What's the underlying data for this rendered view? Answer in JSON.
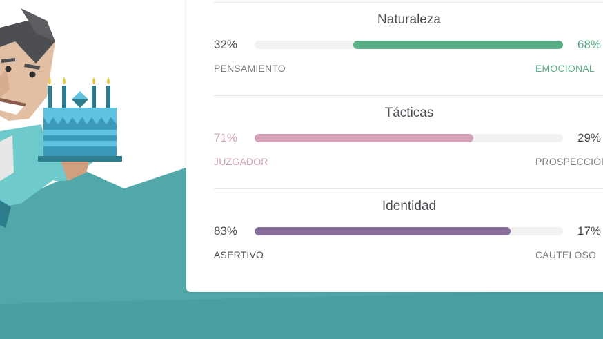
{
  "colors": {
    "background_teal": "#52a8a9",
    "naturaleza": "#5aad84",
    "tacticas": "#d3a1b6",
    "identidad": "#886e9b",
    "text_dark": "#4d4d53",
    "text_muted": "#7a7a80"
  },
  "illustration": {
    "icon": "man-holding-birthday-cake"
  },
  "traits": [
    {
      "title": "Naturaleza",
      "left_pct_label": "32%",
      "right_pct_label": "68%",
      "left_pole": "PENSAMIENTO",
      "right_pole": "EMOCIONAL",
      "dominant": "right",
      "dominant_fraction": 0.68
    },
    {
      "title": "Tácticas",
      "left_pct_label": "71%",
      "right_pct_label": "29%",
      "left_pole": "JUZGADOR",
      "right_pole": "PROSPECCIÓN",
      "dominant": "left",
      "dominant_fraction": 0.71
    },
    {
      "title": "Identidad",
      "left_pct_label": "83%",
      "right_pct_label": "17%",
      "left_pole": "ASERTIVO",
      "right_pole": "CAUTELOSO",
      "dominant": "left",
      "dominant_fraction": 0.83
    }
  ]
}
